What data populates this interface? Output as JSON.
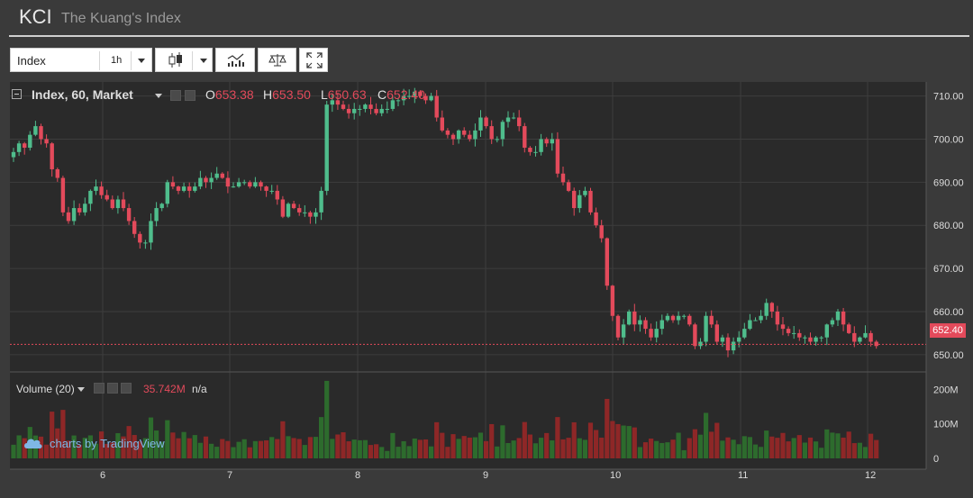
{
  "header": {
    "ticker": "KCI",
    "name": "The Kuang's Index"
  },
  "toolbar": {
    "symbol": "Index",
    "interval": "1h"
  },
  "legend": {
    "title": "Index, 60, Market",
    "o_key": "O",
    "o_val": "653.38",
    "h_key": "H",
    "h_val": "653.50",
    "l_key": "L",
    "l_val": "650.63",
    "c_key": "C",
    "c_val": "652.40"
  },
  "volume_legend": {
    "label": "Volume (20)",
    "value": "35.742M",
    "extra": "n/a"
  },
  "watermark": "charts by TradingView",
  "colors": {
    "up": "#4fbd8c",
    "down": "#e34a5b",
    "vol_up": "#2d6b2d",
    "vol_down": "#8e2727",
    "bg": "#2a2a2a"
  },
  "chart_data": {
    "type": "candlestick",
    "y_ticks": [
      "710.00",
      "700.00",
      "690.00",
      "680.00",
      "670.00",
      "660.00",
      "650.00"
    ],
    "y_range": [
      646,
      712
    ],
    "last_price": "652.40",
    "vol_ticks": [
      "200M",
      "100M",
      "0"
    ],
    "vol_range": [
      0,
      230
    ],
    "x_ticks": [
      "6",
      "7",
      "8",
      "9",
      "10",
      "11",
      "12"
    ],
    "close": [
      697,
      699,
      698,
      701,
      703,
      700,
      699,
      693,
      691,
      683,
      681,
      684,
      683,
      685,
      688,
      689,
      687,
      686,
      684,
      686,
      684,
      681,
      678,
      676,
      676,
      681,
      684,
      685,
      690,
      689,
      688,
      689,
      688,
      689,
      691,
      690,
      691,
      692,
      691,
      689,
      689,
      690,
      690,
      689,
      690,
      689,
      688,
      688,
      686,
      682,
      685,
      684,
      683,
      683,
      682,
      683,
      688,
      708,
      709,
      708,
      707,
      706,
      707,
      707,
      708,
      707,
      706,
      707,
      707,
      709,
      709,
      710,
      710,
      711,
      710,
      709,
      710,
      705,
      702,
      701,
      700,
      702,
      701,
      700,
      702,
      705,
      703,
      700,
      700,
      704,
      705,
      705,
      703,
      698,
      697,
      697,
      700,
      699,
      700,
      692,
      690,
      688,
      684,
      687,
      688,
      683,
      680,
      677,
      666,
      659,
      654,
      657,
      660,
      657,
      658,
      656,
      654,
      656,
      658,
      659,
      658,
      659,
      659,
      657,
      652,
      653,
      659,
      657,
      653,
      654,
      651,
      653,
      654,
      656,
      658,
      658,
      659,
      662,
      660,
      657,
      656,
      655,
      655,
      654,
      654,
      653,
      654,
      654,
      657,
      658,
      660,
      657,
      655,
      653,
      654,
      655,
      653,
      652
    ]
  }
}
